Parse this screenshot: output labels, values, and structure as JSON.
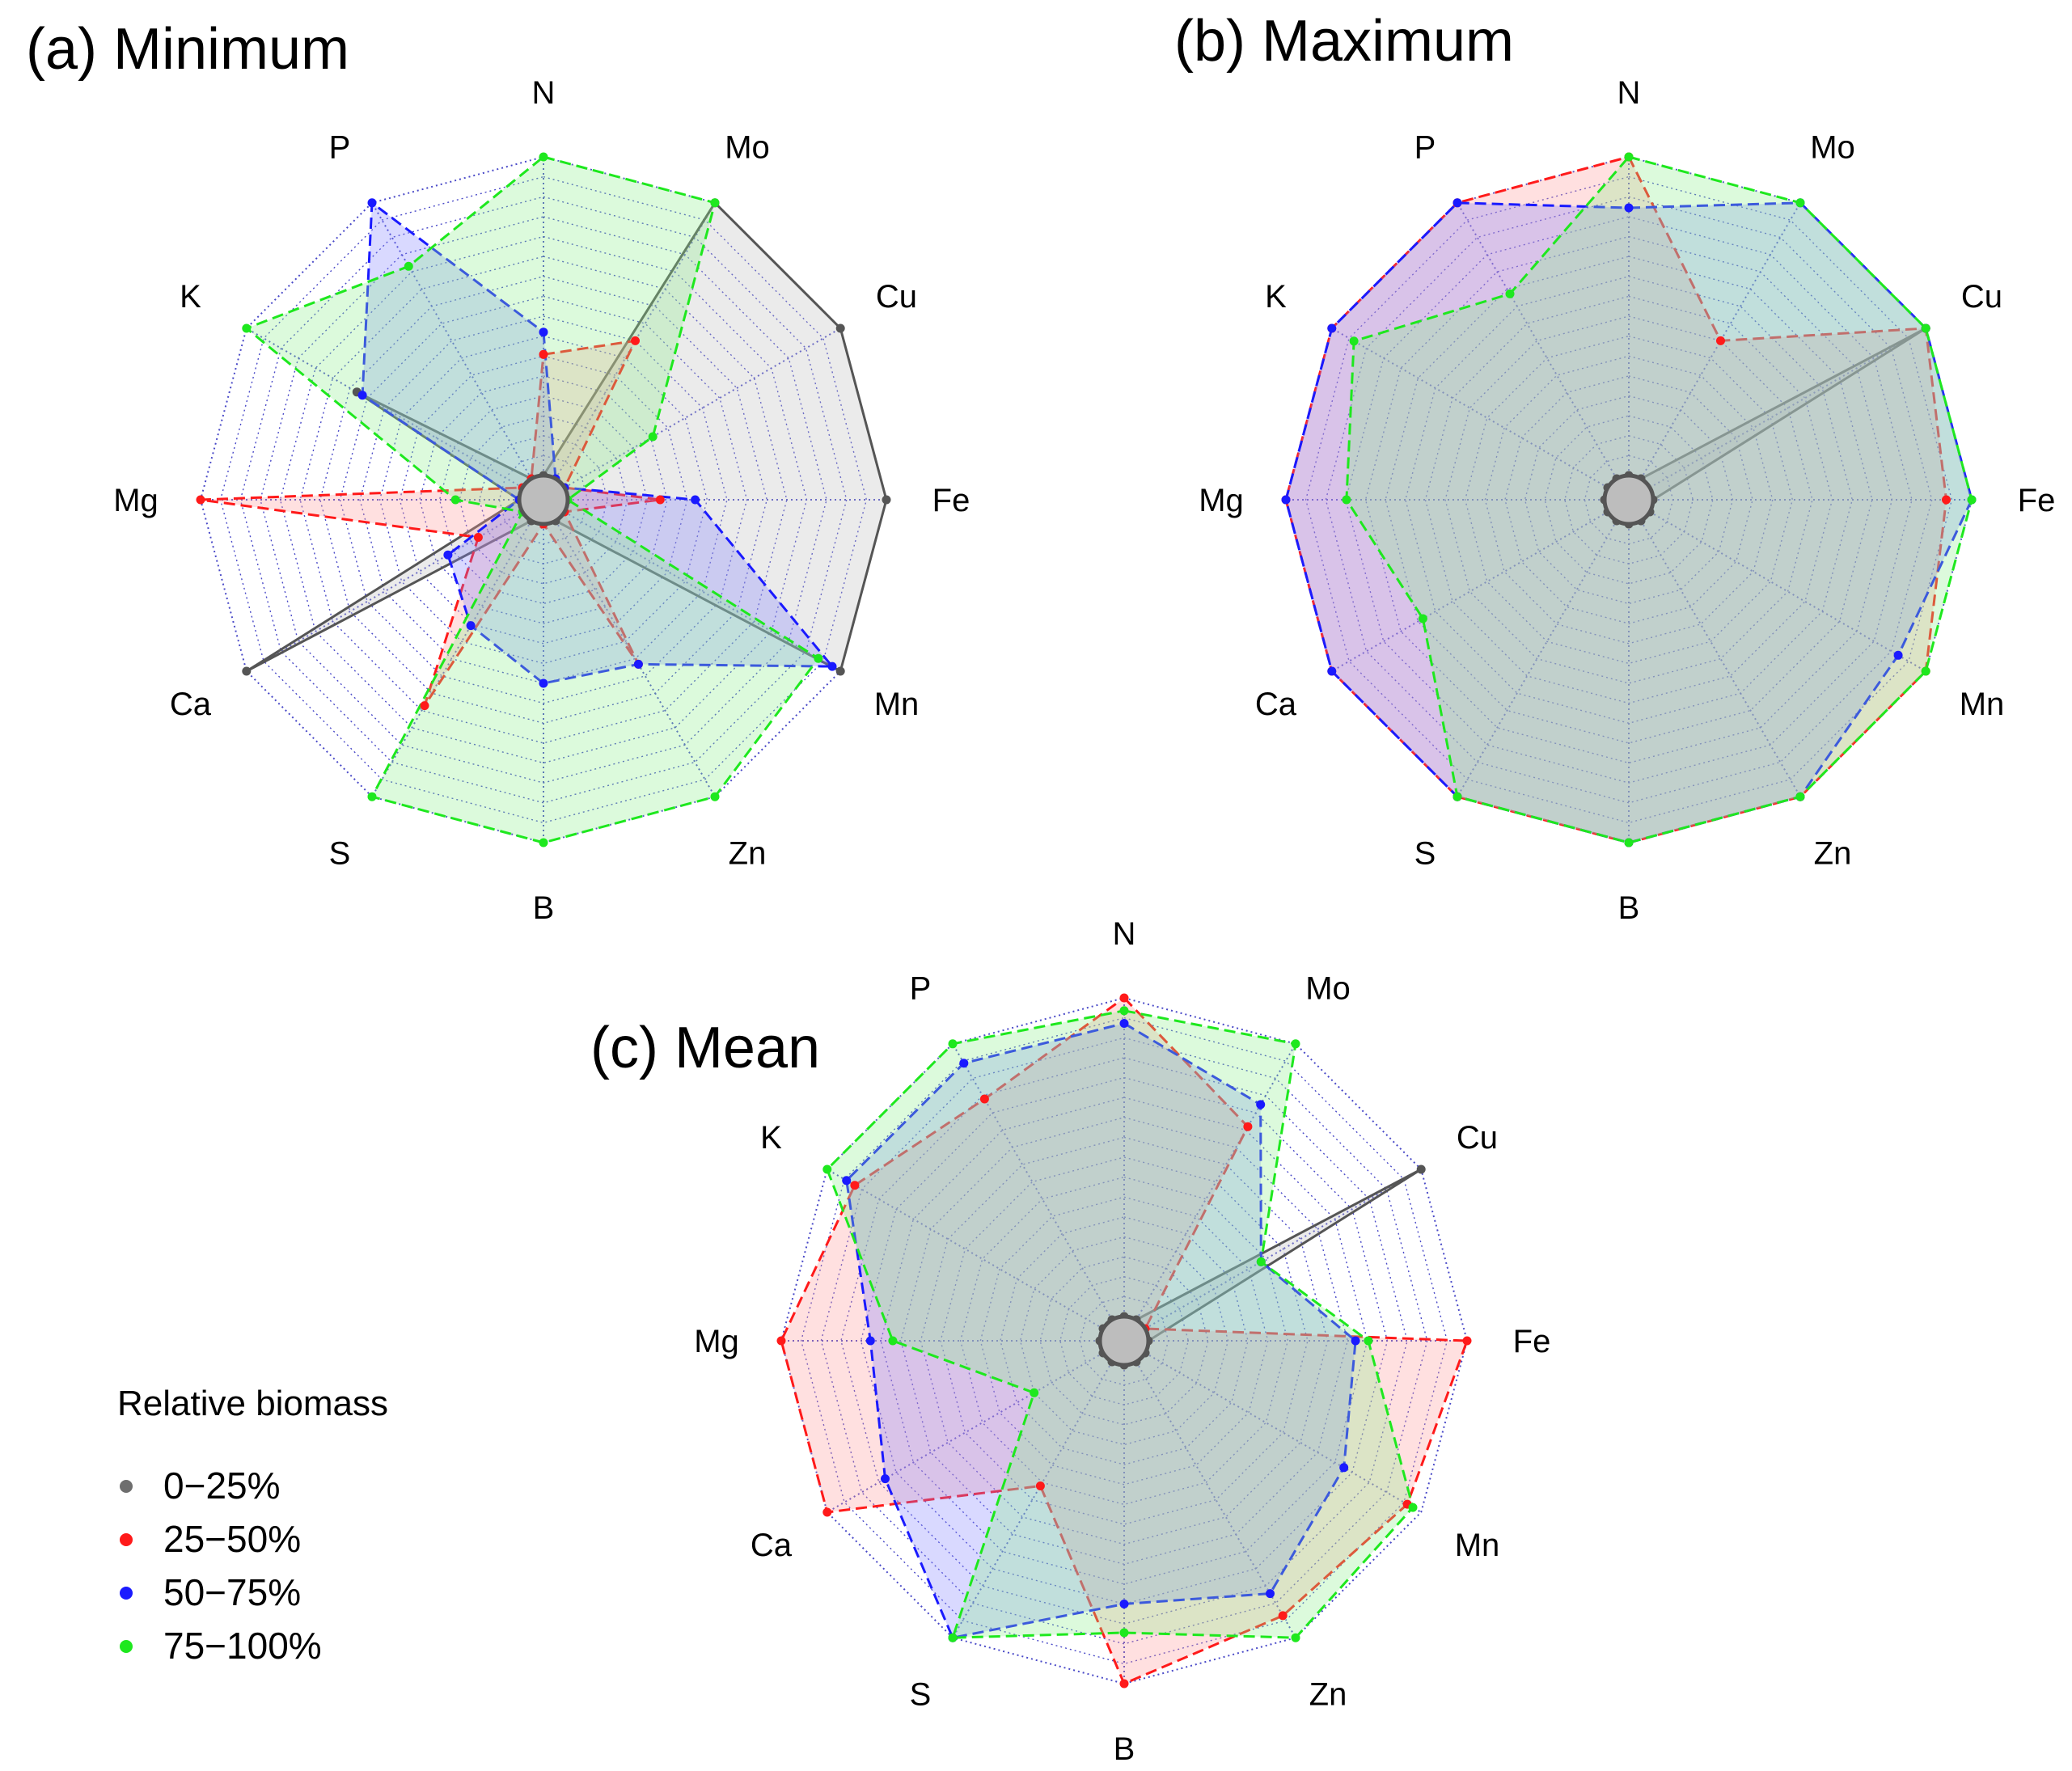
{
  "chart_data": [
    {
      "type": "radar",
      "title": "(a) Minimum",
      "axes": [
        "N",
        "Mo",
        "Cu",
        "Fe",
        "Mn",
        "Zn",
        "B",
        "S",
        "Ca",
        "Mg",
        "K",
        "P"
      ],
      "rmax": 1,
      "grid_rings": 16,
      "series": [
        {
          "name": "0−25%",
          "color": "#555555",
          "fill": "#bdbdbd",
          "values": [
            0.0,
            1.0,
            1.0,
            1.0,
            1.0,
            0.0,
            0.0,
            0.0,
            1.0,
            0.0,
            0.6,
            0.0
          ]
        },
        {
          "name": "25−50%",
          "color": "#ff1a1a",
          "fill": "#ff9999",
          "values": [
            0.38,
            0.5,
            0.0,
            0.29,
            0.0,
            0.52,
            0.0,
            0.67,
            0.16,
            1.0,
            0.0,
            0.0
          ]
        },
        {
          "name": "50−75%",
          "color": "#1a1aff",
          "fill": "#8080ff",
          "values": [
            0.45,
            0.0,
            0.0,
            0.4,
            0.97,
            0.52,
            0.5,
            0.38,
            0.27,
            0.0,
            0.58,
            1.0
          ]
        },
        {
          "name": "75−100%",
          "color": "#1ee81e",
          "fill": "#8cf08c",
          "values": [
            1.0,
            1.0,
            0.32,
            0.0,
            0.92,
            1.0,
            1.0,
            1.0,
            0.0,
            0.2,
            1.0,
            0.77
          ]
        }
      ]
    },
    {
      "type": "radar",
      "title": "(b) Maximum",
      "axes": [
        "N",
        "Mo",
        "Cu",
        "Fe",
        "Mn",
        "Zn",
        "B",
        "S",
        "Ca",
        "Mg",
        "K",
        "P"
      ],
      "rmax": 1,
      "grid_rings": 16,
      "series": [
        {
          "name": "0−25%",
          "color": "#555555",
          "fill": "#bdbdbd",
          "values": [
            0.0,
            0.0,
            1.0,
            0.0,
            0.0,
            0.0,
            0.0,
            0.0,
            0.0,
            0.0,
            0.0,
            0.0
          ]
        },
        {
          "name": "25−50%",
          "color": "#ff1a1a",
          "fill": "#ff9999",
          "values": [
            1.0,
            0.5,
            1.0,
            0.92,
            1.0,
            1.0,
            1.0,
            1.0,
            1.0,
            1.0,
            1.0,
            1.0
          ]
        },
        {
          "name": "50−75%",
          "color": "#1a1aff",
          "fill": "#8080ff",
          "values": [
            0.84,
            1.0,
            1.0,
            1.0,
            0.9,
            1.0,
            1.0,
            1.0,
            1.0,
            1.0,
            1.0,
            1.0
          ]
        },
        {
          "name": "75−100%",
          "color": "#1ee81e",
          "fill": "#8cf08c",
          "values": [
            1.0,
            1.0,
            1.0,
            1.0,
            1.0,
            1.0,
            1.0,
            1.0,
            0.67,
            0.81,
            0.92,
            0.67
          ]
        }
      ]
    },
    {
      "type": "radar",
      "title": "(c) Mean",
      "axes": [
        "N",
        "Mo",
        "Cu",
        "Fe",
        "Mn",
        "Zn",
        "B",
        "S",
        "Ca",
        "Mg",
        "K",
        "P"
      ],
      "rmax": 1,
      "grid_rings": 16,
      "series": [
        {
          "name": "0−25%",
          "color": "#555555",
          "fill": "#bdbdbd",
          "values": [
            0.0,
            0.0,
            1.0,
            0.0,
            0.0,
            0.0,
            0.0,
            0.0,
            0.0,
            0.0,
            0.0,
            0.0
          ]
        },
        {
          "name": "25−50%",
          "color": "#ff1a1a",
          "fill": "#ff9999",
          "values": [
            1.0,
            0.7,
            0.0,
            1.0,
            0.95,
            0.92,
            1.0,
            0.45,
            1.0,
            1.0,
            0.9,
            0.8
          ]
        },
        {
          "name": "50−75%",
          "color": "#1a1aff",
          "fill": "#8080ff",
          "values": [
            0.92,
            0.78,
            0.42,
            0.65,
            0.72,
            0.84,
            0.75,
            1.0,
            0.79,
            0.72,
            0.93,
            0.93
          ]
        },
        {
          "name": "75−100%",
          "color": "#1ee81e",
          "fill": "#8cf08c",
          "values": [
            0.96,
            1.0,
            0.42,
            0.69,
            0.97,
            1.0,
            0.84,
            1.0,
            0.25,
            0.65,
            1.0,
            1.0
          ]
        }
      ]
    }
  ],
  "legend": {
    "title": "Relative biomass",
    "items": [
      {
        "label": "0−25%",
        "color": "#6e6e6e"
      },
      {
        "label": "25−50%",
        "color": "#ff1a1a"
      },
      {
        "label": "50−75%",
        "color": "#1a1aff"
      },
      {
        "label": "75−100%",
        "color": "#1ee81e"
      }
    ]
  }
}
